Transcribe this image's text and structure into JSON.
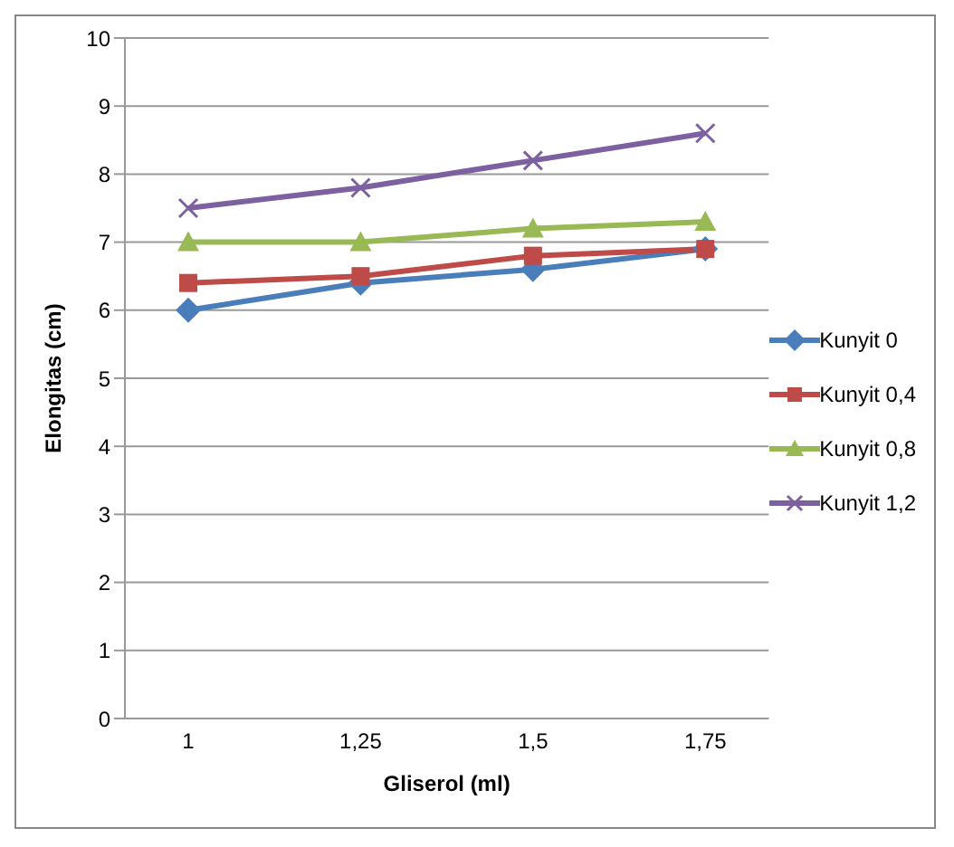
{
  "chart_data": {
    "type": "line",
    "xlabel": "Gliserol (ml)",
    "ylabel": "Elongitas (cm)",
    "categories": [
      "1",
      "1,25",
      "1,5",
      "1,75"
    ],
    "series": [
      {
        "name": "Kunyit 0",
        "color": "#4a7ebb",
        "marker": "diamond",
        "values": [
          6.0,
          6.4,
          6.6,
          6.9
        ]
      },
      {
        "name": "Kunyit 0,4",
        "color": "#be4b48",
        "marker": "square",
        "values": [
          6.4,
          6.5,
          6.8,
          6.9
        ]
      },
      {
        "name": "Kunyit 0,8",
        "color": "#98b954",
        "marker": "triangle",
        "values": [
          7.0,
          7.0,
          7.2,
          7.3
        ]
      },
      {
        "name": "Kunyit 1,2",
        "color": "#7d60a0",
        "marker": "cross",
        "values": [
          7.5,
          7.8,
          8.2,
          8.6
        ]
      }
    ],
    "ylim": [
      0,
      10
    ],
    "yticks": [
      0,
      1,
      2,
      3,
      4,
      5,
      6,
      7,
      8,
      9,
      10
    ],
    "grid": "y",
    "legend": "right"
  }
}
